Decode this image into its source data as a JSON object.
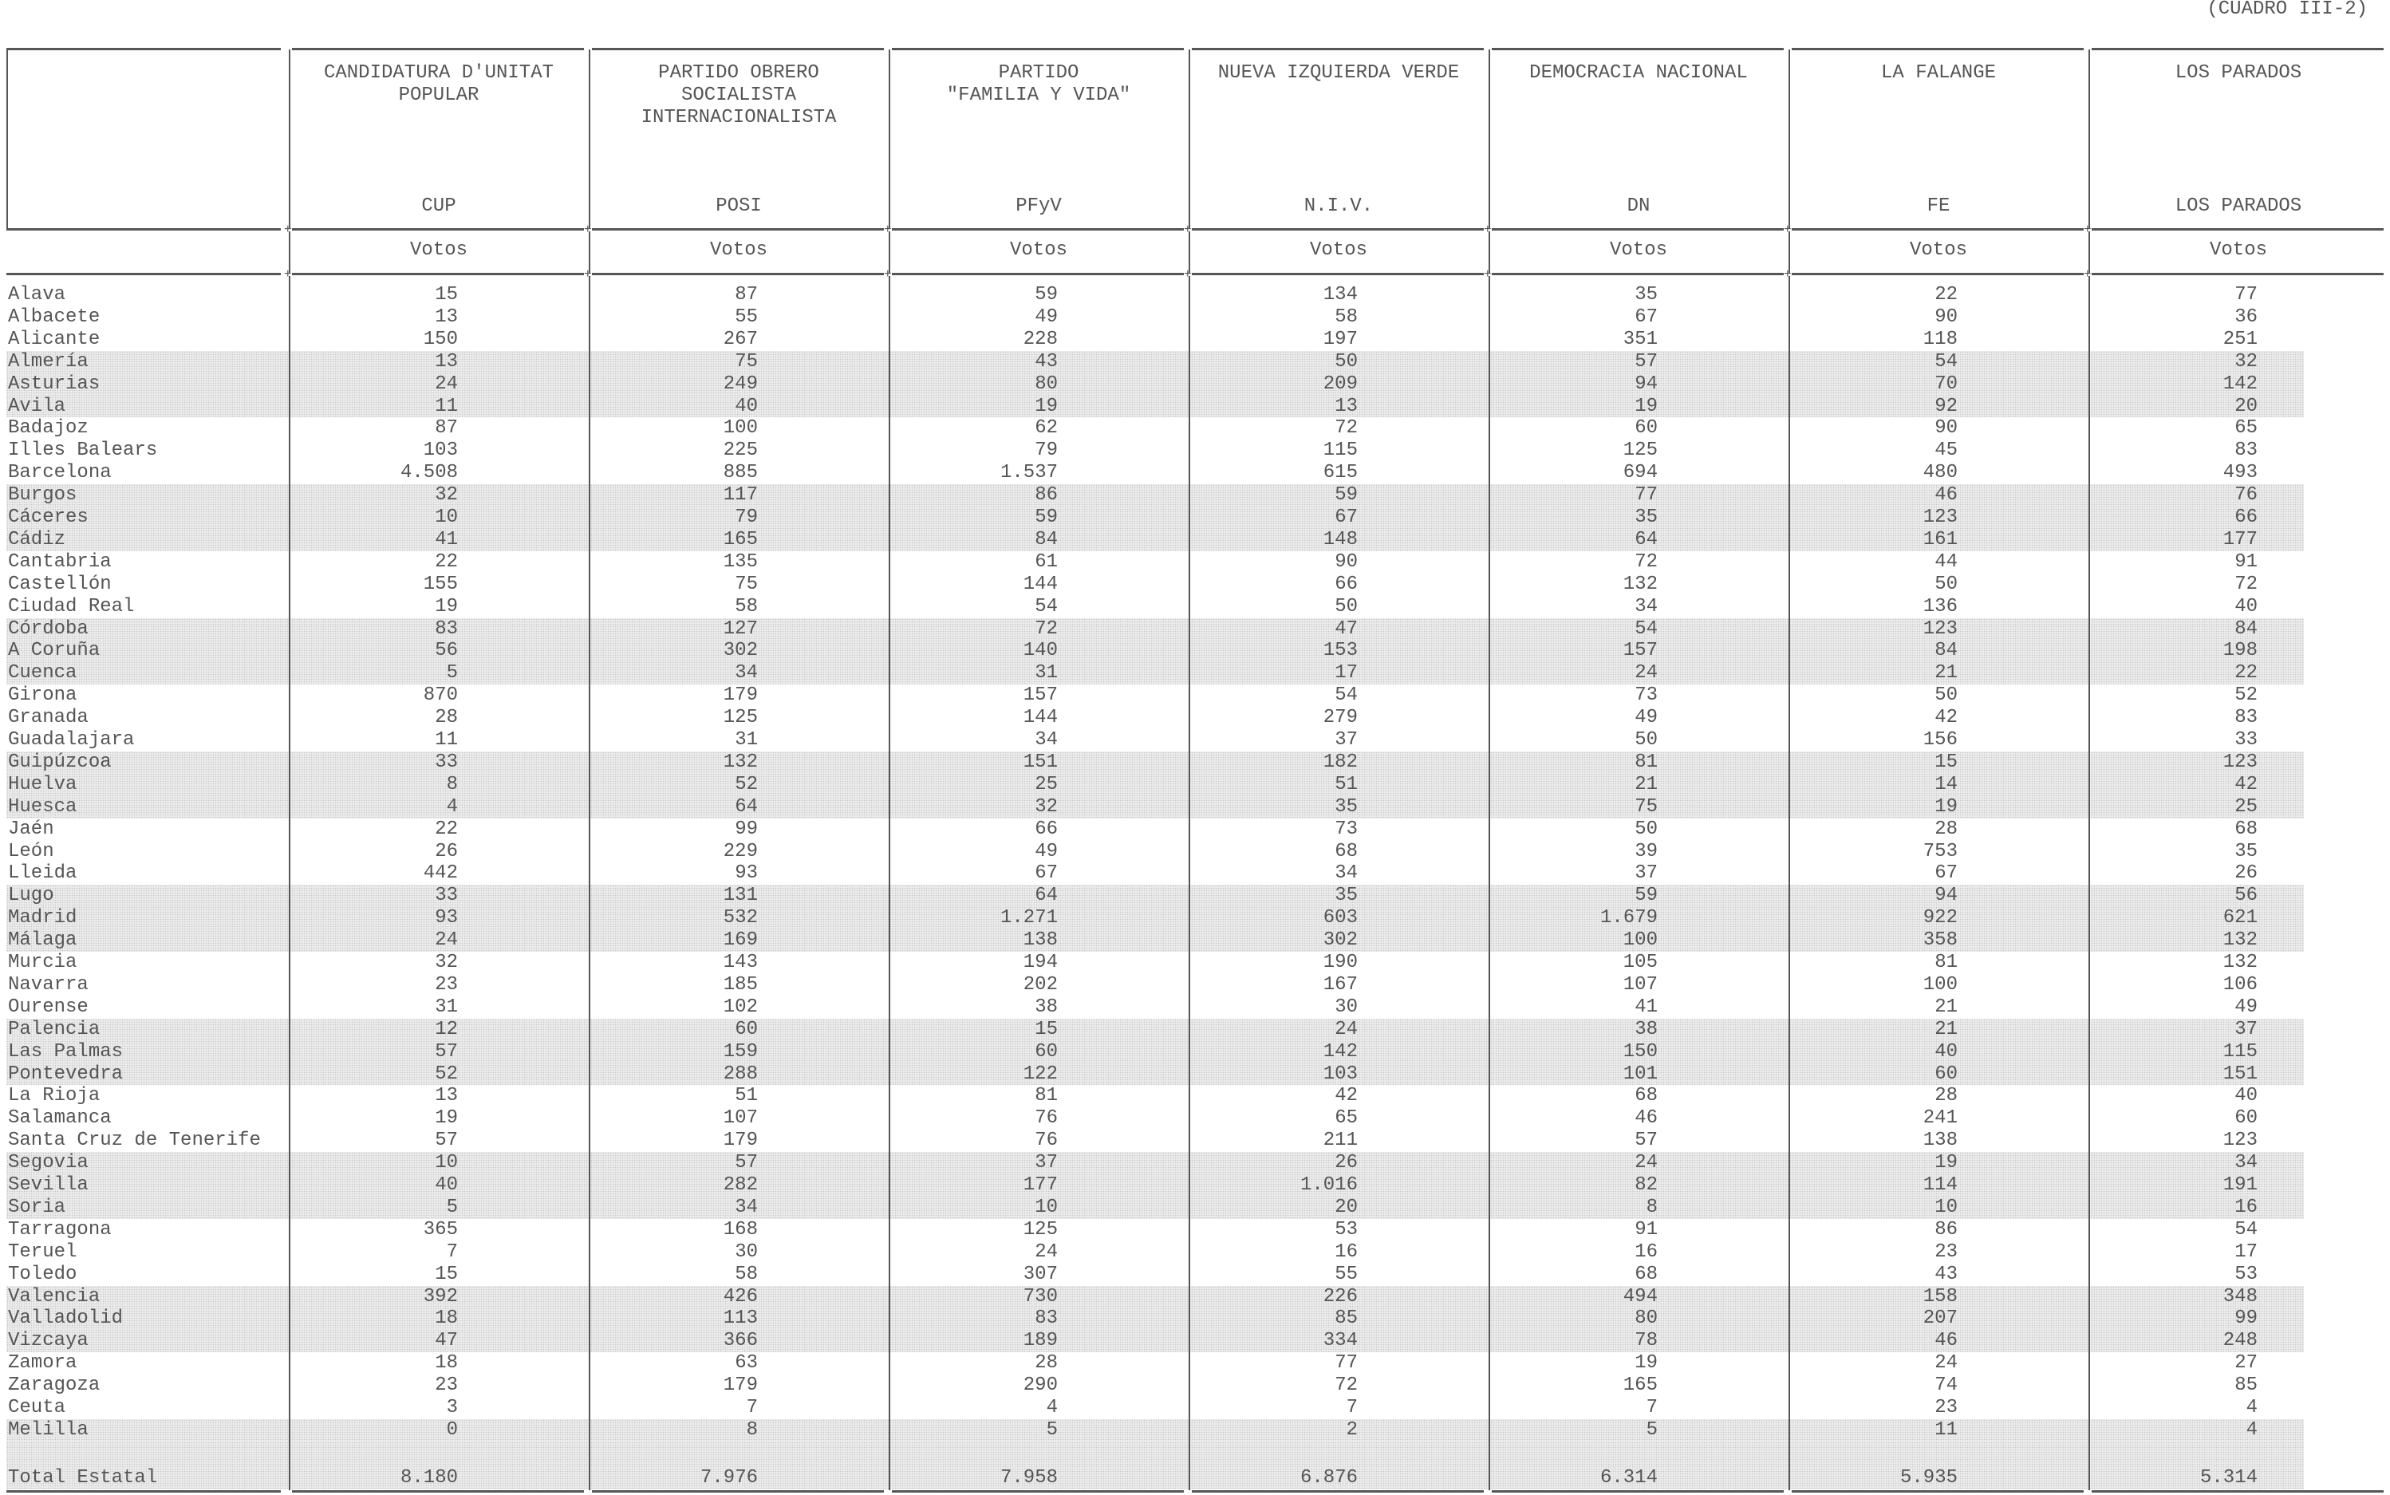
{
  "code": "(CUADRO III-2)",
  "columns": [
    {
      "name_lines": [
        "CANDIDATURA D'UNITAT",
        "POPULAR"
      ],
      "abbr": "CUP",
      "unit": "Votos"
    },
    {
      "name_lines": [
        "PARTIDO OBRERO",
        "SOCIALISTA",
        "INTERNACIONALISTA"
      ],
      "abbr": "POSI",
      "unit": "Votos"
    },
    {
      "name_lines": [
        "PARTIDO",
        "\"FAMILIA Y VIDA\""
      ],
      "abbr": "PFyV",
      "unit": "Votos"
    },
    {
      "name_lines": [
        "NUEVA IZQUIERDA VERDE"
      ],
      "abbr": "N.I.V.",
      "unit": "Votos"
    },
    {
      "name_lines": [
        "DEMOCRACIA NACIONAL"
      ],
      "abbr": "DN",
      "unit": "Votos"
    },
    {
      "name_lines": [
        "LA FALANGE"
      ],
      "abbr": "FE",
      "unit": "Votos"
    },
    {
      "name_lines": [
        "LOS PARADOS"
      ],
      "abbr": "LOS PARADOS",
      "unit": "Votos"
    }
  ],
  "rows": [
    {
      "province": "Alava",
      "values": [
        "15",
        "87",
        "59",
        "134",
        "35",
        "22",
        "77"
      ]
    },
    {
      "province": "Albacete",
      "values": [
        "13",
        "55",
        "49",
        "58",
        "67",
        "90",
        "36"
      ]
    },
    {
      "province": "Alicante",
      "values": [
        "150",
        "267",
        "228",
        "197",
        "351",
        "118",
        "251"
      ]
    },
    {
      "province": "Almería",
      "values": [
        "13",
        "75",
        "43",
        "50",
        "57",
        "54",
        "32"
      ]
    },
    {
      "province": "Asturias",
      "values": [
        "24",
        "249",
        "80",
        "209",
        "94",
        "70",
        "142"
      ]
    },
    {
      "province": "Avila",
      "values": [
        "11",
        "40",
        "19",
        "13",
        "19",
        "92",
        "20"
      ]
    },
    {
      "province": "Badajoz",
      "values": [
        "87",
        "100",
        "62",
        "72",
        "60",
        "90",
        "65"
      ]
    },
    {
      "province": "Illes Balears",
      "values": [
        "103",
        "225",
        "79",
        "115",
        "125",
        "45",
        "83"
      ]
    },
    {
      "province": "Barcelona",
      "values": [
        "4.508",
        "885",
        "1.537",
        "615",
        "694",
        "480",
        "493"
      ]
    },
    {
      "province": "Burgos",
      "values": [
        "32",
        "117",
        "86",
        "59",
        "77",
        "46",
        "76"
      ]
    },
    {
      "province": "Cáceres",
      "values": [
        "10",
        "79",
        "59",
        "67",
        "35",
        "123",
        "66"
      ]
    },
    {
      "province": "Cádiz",
      "values": [
        "41",
        "165",
        "84",
        "148",
        "64",
        "161",
        "177"
      ]
    },
    {
      "province": "Cantabria",
      "values": [
        "22",
        "135",
        "61",
        "90",
        "72",
        "44",
        "91"
      ]
    },
    {
      "province": "Castellón",
      "values": [
        "155",
        "75",
        "144",
        "66",
        "132",
        "50",
        "72"
      ]
    },
    {
      "province": "Ciudad Real",
      "values": [
        "19",
        "58",
        "54",
        "50",
        "34",
        "136",
        "40"
      ]
    },
    {
      "province": "Córdoba",
      "values": [
        "83",
        "127",
        "72",
        "47",
        "54",
        "123",
        "84"
      ]
    },
    {
      "province": "A Coruña",
      "values": [
        "56",
        "302",
        "140",
        "153",
        "157",
        "84",
        "198"
      ]
    },
    {
      "province": "Cuenca",
      "values": [
        "5",
        "34",
        "31",
        "17",
        "24",
        "21",
        "22"
      ]
    },
    {
      "province": "Girona",
      "values": [
        "870",
        "179",
        "157",
        "54",
        "73",
        "50",
        "52"
      ]
    },
    {
      "province": "Granada",
      "values": [
        "28",
        "125",
        "144",
        "279",
        "49",
        "42",
        "83"
      ]
    },
    {
      "province": "Guadalajara",
      "values": [
        "11",
        "31",
        "34",
        "37",
        "50",
        "156",
        "33"
      ]
    },
    {
      "province": "Guipúzcoa",
      "values": [
        "33",
        "132",
        "151",
        "182",
        "81",
        "15",
        "123"
      ]
    },
    {
      "province": "Huelva",
      "values": [
        "8",
        "52",
        "25",
        "51",
        "21",
        "14",
        "42"
      ]
    },
    {
      "province": "Huesca",
      "values": [
        "4",
        "64",
        "32",
        "35",
        "75",
        "19",
        "25"
      ]
    },
    {
      "province": "Jaén",
      "values": [
        "22",
        "99",
        "66",
        "73",
        "50",
        "28",
        "68"
      ]
    },
    {
      "province": "León",
      "values": [
        "26",
        "229",
        "49",
        "68",
        "39",
        "753",
        "35"
      ]
    },
    {
      "province": "Lleida",
      "values": [
        "442",
        "93",
        "67",
        "34",
        "37",
        "67",
        "26"
      ]
    },
    {
      "province": "Lugo",
      "values": [
        "33",
        "131",
        "64",
        "35",
        "59",
        "94",
        "56"
      ]
    },
    {
      "province": "Madrid",
      "values": [
        "93",
        "532",
        "1.271",
        "603",
        "1.679",
        "922",
        "621"
      ]
    },
    {
      "province": "Málaga",
      "values": [
        "24",
        "169",
        "138",
        "302",
        "100",
        "358",
        "132"
      ]
    },
    {
      "province": "Murcia",
      "values": [
        "32",
        "143",
        "194",
        "190",
        "105",
        "81",
        "132"
      ]
    },
    {
      "province": "Navarra",
      "values": [
        "23",
        "185",
        "202",
        "167",
        "107",
        "100",
        "106"
      ]
    },
    {
      "province": "Ourense",
      "values": [
        "31",
        "102",
        "38",
        "30",
        "41",
        "21",
        "49"
      ]
    },
    {
      "province": "Palencia",
      "values": [
        "12",
        "60",
        "15",
        "24",
        "38",
        "21",
        "37"
      ]
    },
    {
      "province": "Las Palmas",
      "values": [
        "57",
        "159",
        "60",
        "142",
        "150",
        "40",
        "115"
      ]
    },
    {
      "province": "Pontevedra",
      "values": [
        "52",
        "288",
        "122",
        "103",
        "101",
        "60",
        "151"
      ]
    },
    {
      "province": "La Rioja",
      "values": [
        "13",
        "51",
        "81",
        "42",
        "68",
        "28",
        "40"
      ]
    },
    {
      "province": "Salamanca",
      "values": [
        "19",
        "107",
        "76",
        "65",
        "46",
        "241",
        "60"
      ]
    },
    {
      "province": "Santa Cruz de Tenerife",
      "values": [
        "57",
        "179",
        "76",
        "211",
        "57",
        "138",
        "123"
      ]
    },
    {
      "province": "Segovia",
      "values": [
        "10",
        "57",
        "37",
        "26",
        "24",
        "19",
        "34"
      ]
    },
    {
      "province": "Sevilla",
      "values": [
        "40",
        "282",
        "177",
        "1.016",
        "82",
        "114",
        "191"
      ]
    },
    {
      "province": "Soria",
      "values": [
        "5",
        "34",
        "10",
        "20",
        "8",
        "10",
        "16"
      ]
    },
    {
      "province": "Tarragona",
      "values": [
        "365",
        "168",
        "125",
        "53",
        "91",
        "86",
        "54"
      ]
    },
    {
      "province": "Teruel",
      "values": [
        "7",
        "30",
        "24",
        "16",
        "16",
        "23",
        "17"
      ]
    },
    {
      "province": "Toledo",
      "values": [
        "15",
        "58",
        "307",
        "55",
        "68",
        "43",
        "53"
      ]
    },
    {
      "province": "Valencia",
      "values": [
        "392",
        "426",
        "730",
        "226",
        "494",
        "158",
        "348"
      ]
    },
    {
      "province": "Valladolid",
      "values": [
        "18",
        "113",
        "83",
        "85",
        "80",
        "207",
        "99"
      ]
    },
    {
      "province": "Vizcaya",
      "values": [
        "47",
        "366",
        "189",
        "334",
        "78",
        "46",
        "248"
      ]
    },
    {
      "province": "Zamora",
      "values": [
        "18",
        "63",
        "28",
        "77",
        "19",
        "24",
        "27"
      ]
    },
    {
      "province": "Zaragoza",
      "values": [
        "23",
        "179",
        "290",
        "72",
        "165",
        "74",
        "85"
      ]
    },
    {
      "province": "Ceuta",
      "values": [
        "3",
        "7",
        "4",
        "7",
        "7",
        "23",
        "4"
      ]
    },
    {
      "province": "Melilla",
      "values": [
        "0",
        "8",
        "5",
        "2",
        "5",
        "11",
        "4"
      ]
    }
  ],
  "total": {
    "label": "Total Estatal",
    "values": [
      "8.180",
      "7.976",
      "7.958",
      "6.876",
      "6.314",
      "5.935",
      "5.314"
    ]
  }
}
